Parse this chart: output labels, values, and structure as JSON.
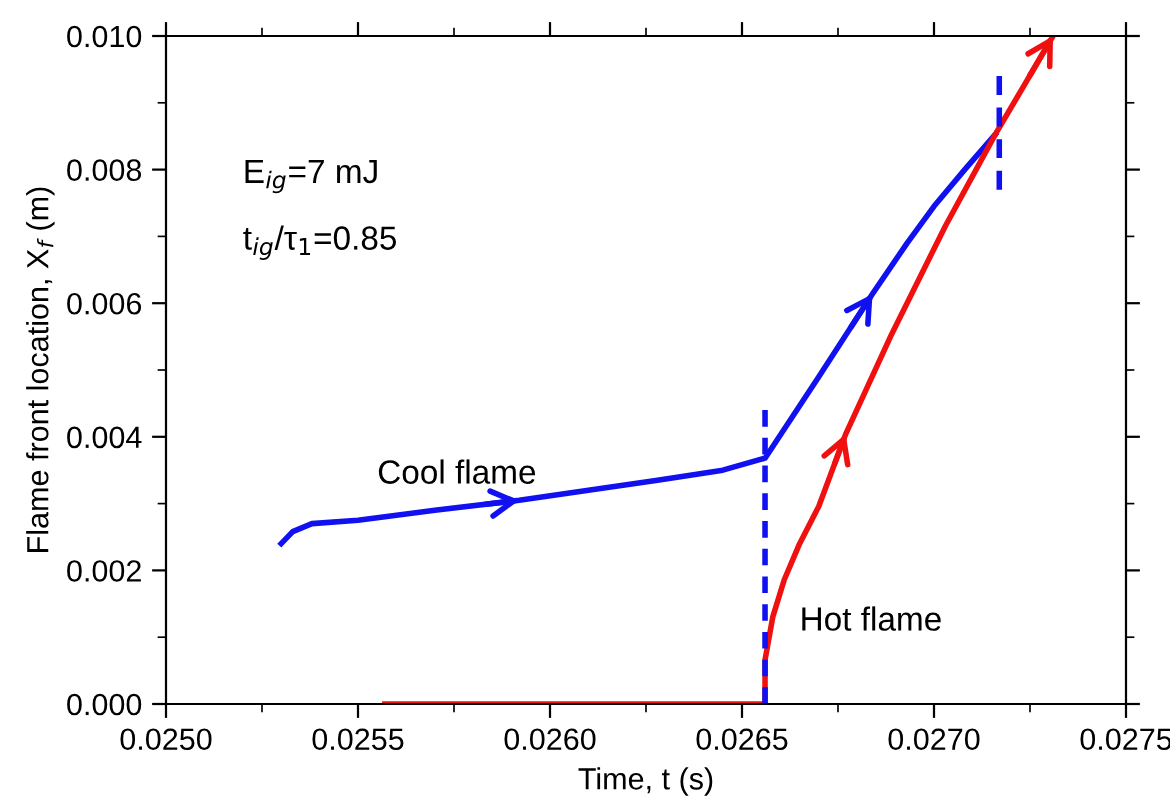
{
  "chart_data": {
    "type": "line",
    "xlabel": "Time, t (s)",
    "ylabel": "Flame front location, X$_{f}$ (m)",
    "annotations": [
      "E$_{ig}$=7 mJ",
      "t$_{ig}$/τ$_{1}$=0.85",
      "Cool flame",
      "Hot flame"
    ],
    "series": [
      {
        "color": "#1010f0",
        "x": [
          0.0253,
          0.02533,
          0.02538,
          0.0255,
          0.0257,
          0.02592,
          0.0261,
          0.02628,
          0.02645,
          0.02656,
          0.0267,
          0.02684,
          0.02693,
          0.027,
          0.02708,
          0.02716
        ],
        "values": [
          0.0024,
          0.00258,
          0.0027,
          0.00275,
          0.0029,
          0.00305,
          0.0032,
          0.00335,
          0.0035,
          0.00368,
          0.0049,
          0.00614,
          0.0069,
          0.00745,
          0.008,
          0.00853
        ]
      },
      {
        "color": "#f01010",
        "x": [
          0.02557,
          0.02656,
          0.02656,
          0.02658,
          0.02661,
          0.02665,
          0.0267,
          0.02677,
          0.02689,
          0.02703,
          0.02716,
          0.02731
        ],
        "values": [
          0.0,
          0.0,
          0.00066,
          0.0013,
          0.00186,
          0.0024,
          0.00296,
          0.00404,
          0.00554,
          0.00716,
          0.00853,
          0.01
        ]
      },
      {
        "color": "#1010f0",
        "line_style": "dashed",
        "x": [
          0.02656,
          0.02656
        ],
        "values": [
          0.0,
          0.0044
        ]
      },
      {
        "color": "#1010f0",
        "line_style": "dashed",
        "x": [
          0.02717,
          0.02717
        ],
        "values": [
          0.0077,
          0.0094
        ]
      }
    ],
    "xlim": [
      0.025,
      0.0275
    ],
    "xticks": [
      {
        "value": 0.025,
        "label": "0.0250"
      },
      {
        "value": 0.0255,
        "label": "0.0255"
      },
      {
        "value": 0.026,
        "label": "0.0260"
      },
      {
        "value": 0.0265,
        "label": "0.0265"
      },
      {
        "value": 0.027,
        "label": "0.0270"
      },
      {
        "value": 0.0275,
        "label": "0.0275"
      }
    ],
    "ylim": [
      0.0,
      0.01
    ],
    "yticks": [
      {
        "value": 0.0,
        "label": "0.000"
      },
      {
        "value": 0.002,
        "label": "0.002"
      },
      {
        "value": 0.004,
        "label": "0.004"
      },
      {
        "value": 0.006,
        "label": "0.006"
      },
      {
        "value": 0.008,
        "label": "0.008"
      },
      {
        "value": 0.01,
        "label": "0.010"
      }
    ],
    "grid": false,
    "legend": false,
    "marker": "none",
    "line_style": "solid"
  }
}
